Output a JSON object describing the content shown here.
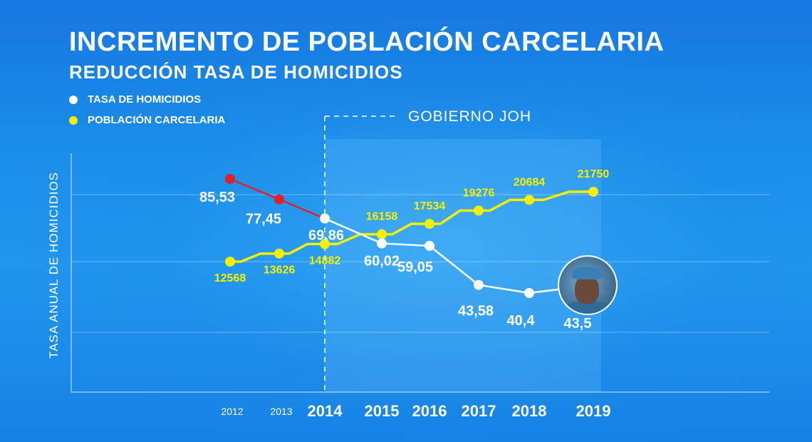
{
  "title": "INCREMENTO DE POBLACIÓN CARCELARIA",
  "subtitle": "REDUCCIÓN TASA DE HOMICIDIOS",
  "legend": [
    {
      "label": "TASA DE HOMICIDIOS",
      "color": "#ffffff"
    },
    {
      "label": "POBLACIÓN CARCELARIA",
      "color": "#f4f000"
    }
  ],
  "government_label": "GOBIERNO JOH",
  "avatar_icon": "police-officer-photo",
  "colors": {
    "homicide_line_before": "#e0202a",
    "homicide_line_after": "#ffffff",
    "prison_line": "#f4f000",
    "background": "#1a8ae8"
  },
  "chart_data": {
    "type": "line",
    "ylabel": "TASA ANUAL DE HOMICIDIOS",
    "xlabel": "",
    "categories": [
      "2012",
      "2013",
      "2014",
      "2015",
      "2016",
      "2017",
      "2018",
      "2019"
    ],
    "series": [
      {
        "name": "TASA DE HOMICIDIOS",
        "values": [
          85.53,
          77.45,
          69.86,
          60.02,
          59.05,
          43.58,
          40.4,
          43.5
        ],
        "labels": [
          "85,53",
          "77,45",
          "69,86",
          "60,02",
          "59,05",
          "43,58",
          "40,4",
          "43,5"
        ]
      },
      {
        "name": "POBLACIÓN CARCELARIA",
        "values": [
          12568,
          13626,
          14882,
          16158,
          17534,
          19276,
          20684,
          21750
        ],
        "labels": [
          "12568",
          "13626",
          "14882",
          "16158",
          "17534",
          "19276",
          "20684",
          "21750"
        ]
      }
    ],
    "government_start": "2014",
    "grid": true
  }
}
